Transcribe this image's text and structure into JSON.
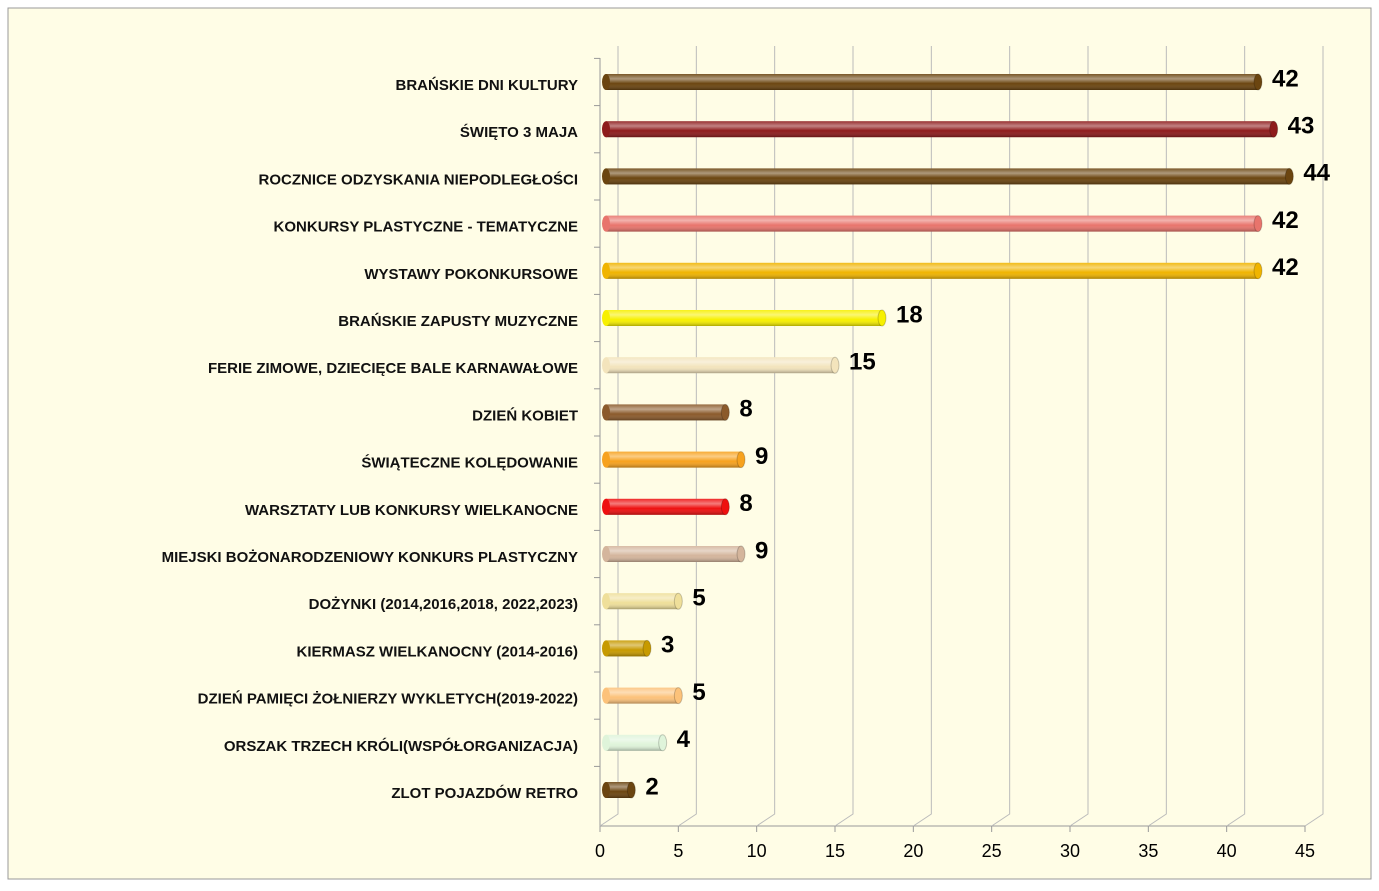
{
  "chart_data": {
    "type": "bar",
    "orientation": "horizontal",
    "categories": [
      "BRAŃSKIE DNI KULTURY",
      "ŚWIĘTO 3 MAJA",
      "ROCZNICE ODZYSKANIA NIEPODLEGŁOŚCI",
      "KONKURSY PLASTYCZNE - TEMATYCZNE",
      "WYSTAWY POKONKURSOWE",
      "BRAŃSKIE ZAPUSTY MUZYCZNE",
      "FERIE ZIMOWE, DZIECIĘCE BALE KARNAWAŁOWE",
      "DZIEŃ KOBIET",
      "ŚWIĄTECZNE KOLĘDOWANIE",
      "WARSZTATY LUB KONKURSY WIELKANOCNE",
      "MIEJSKI BOŻONARODZENIOWY KONKURS PLASTYCZNY",
      "DOŻYNKI (2014,2016,2018, 2022,2023)",
      "KIERMASZ WIELKANOCNY (2014-2016)",
      "DZIEŃ PAMIĘCI ŻOŁNIERZY WYKLETYCH(2019-2022)",
      "ORSZAK TRZECH KRÓLI(WSPÓŁORGANIZACJA)",
      "ZLOT POJAZDÓW RETRO"
    ],
    "values": [
      42,
      43,
      44,
      42,
      42,
      18,
      15,
      8,
      9,
      8,
      9,
      5,
      3,
      5,
      4,
      2
    ],
    "colors": [
      "#6b4510",
      "#8e1b1b",
      "#6b4510",
      "#e8746c",
      "#f0b400",
      "#f7f000",
      "#f3e4bc",
      "#8b5a2b",
      "#f7a21e",
      "#ee1010",
      "#d4b59c",
      "#efdf9a",
      "#c79a00",
      "#fcc27a",
      "#dff4da",
      "#6b4510"
    ],
    "xlim": [
      0,
      45
    ],
    "xticks": [
      0,
      5,
      10,
      15,
      20,
      25,
      30,
      35,
      40,
      45
    ],
    "grid": true
  }
}
